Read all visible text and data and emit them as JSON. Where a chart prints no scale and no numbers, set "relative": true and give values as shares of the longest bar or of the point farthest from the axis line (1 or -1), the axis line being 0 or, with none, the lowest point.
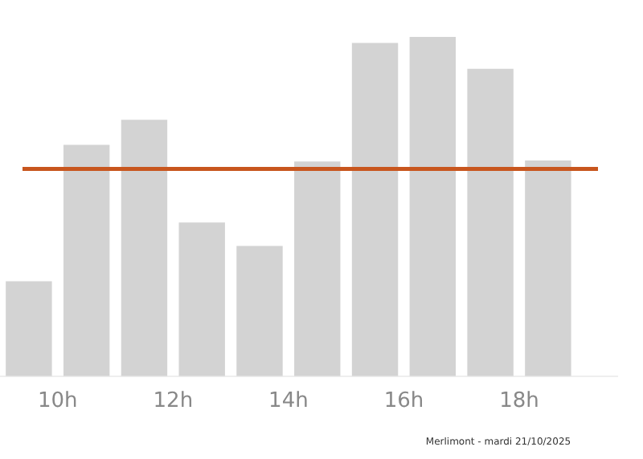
{
  "chart_data": {
    "type": "bar",
    "relative": true,
    "x": [
      9.5,
      10.5,
      11.5,
      12.5,
      13.5,
      14.5,
      15.5,
      16.5,
      17.5,
      18.5
    ],
    "values": [
      0.28,
      0.682,
      0.756,
      0.453,
      0.384,
      0.633,
      0.982,
      1,
      0.906,
      0.636
    ],
    "color": "#d3d3d3",
    "xlim": [
      9,
      19.7
    ],
    "xticks": [
      {
        "value": 10,
        "label": "10h"
      },
      {
        "value": 12,
        "label": "12h"
      },
      {
        "value": 14,
        "label": "14h"
      },
      {
        "value": 16,
        "label": "16h"
      },
      {
        "value": 18,
        "label": "18h"
      }
    ],
    "ref_lines": [
      {
        "axis": "y",
        "value": 0.611,
        "color": "#c8561e"
      }
    ],
    "annotations": [
      "Merlimont - mardi 21/10/2025"
    ],
    "grid": false,
    "legend": false
  }
}
